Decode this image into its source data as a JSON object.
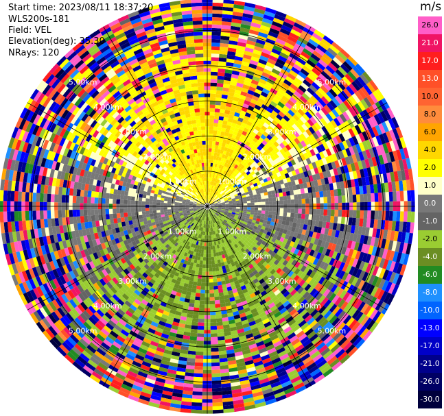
{
  "header": {
    "start_time": "Start time: 2023/08/11 18:37:20",
    "instrument": "WLS200s-181",
    "field": "Field: VEL",
    "elevation": "Elevation(deg): 35.30",
    "nrays": "NRays: 120"
  },
  "chart_data": {
    "type": "heatmap",
    "subtype": "polar-ppi",
    "field": "VEL",
    "units": "m/s",
    "nrays": 120,
    "elevation_deg": 35.3,
    "range_rings_km": [
      1.0,
      2.0,
      3.0,
      4.0,
      5.0
    ],
    "max_range_km": 5.9,
    "spokes_deg": [
      0,
      30,
      60,
      90,
      120,
      150,
      180,
      210,
      240,
      270,
      300,
      330
    ],
    "ring_labels": [
      "1.00km",
      "2.00km",
      "3.00km",
      "4.00km",
      "5.00km"
    ],
    "colorbar": {
      "title": "m/s",
      "vmin": -30.0,
      "vmax": 30.0,
      "labels": [
        "26.0",
        "21.0",
        "17.0",
        "13.0",
        "10.0",
        "8.0",
        "6.0",
        "4.0",
        "2.0",
        "1.0",
        "0.0",
        "-1.0",
        "-2.0",
        "-4.0",
        "-6.0",
        "-8.0",
        "-10.0",
        "-13.0",
        "-17.0",
        "-21.0",
        "-26.0",
        "-30.0"
      ],
      "colors": [
        "#ff5ec8",
        "#f01464",
        "#ff1e1e",
        "#ff5028",
        "#ff6432",
        "#ff8c3c",
        "#ffa500",
        "#ffd700",
        "#ffff00",
        "#ffffc8",
        "#787878",
        "#646464",
        "#9acd32",
        "#6b8e23",
        "#228b22",
        "#1e90ff",
        "#0064ff",
        "#0000ff",
        "#0000c8",
        "#00008b",
        "#000064",
        "#00003c"
      ]
    },
    "pattern": {
      "inner_north": "2 to 6 m/s (yellow/orange)",
      "inner_south": "-1 to -6 m/s (green)",
      "east_west": "near 0 m/s (gray)",
      "outer_edge": "noisy, all values"
    }
  }
}
